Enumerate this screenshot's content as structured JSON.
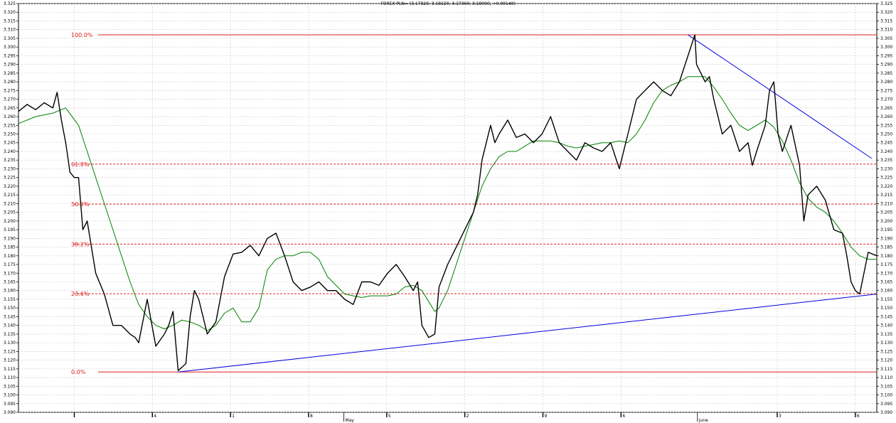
{
  "chart_data": {
    "type": "line",
    "title": "FOREX PLN= (3.17820, 3.18120, 3.17360, 3.18090, +0.00140)",
    "ylim": [
      3.09,
      3.325
    ],
    "y_ticks": [
      3.09,
      3.095,
      3.1,
      3.105,
      3.11,
      3.115,
      3.12,
      3.125,
      3.13,
      3.135,
      3.14,
      3.145,
      3.15,
      3.155,
      3.16,
      3.165,
      3.17,
      3.175,
      3.18,
      3.185,
      3.19,
      3.195,
      3.2,
      3.205,
      3.21,
      3.215,
      3.22,
      3.225,
      3.23,
      3.235,
      3.24,
      3.245,
      3.25,
      3.255,
      3.26,
      3.265,
      3.27,
      3.275,
      3.28,
      3.285,
      3.29,
      3.295,
      3.3,
      3.305,
      3.31,
      3.315,
      3.32,
      3.325
    ],
    "x_range": [
      0,
      100
    ],
    "x_ticks": [
      {
        "x": 6.5,
        "label": ""
      },
      {
        "x": 15.6,
        "label": "4"
      },
      {
        "x": 24.7,
        "label": "1"
      },
      {
        "x": 33.8,
        "label": "8"
      },
      {
        "x": 42.9,
        "label": "5"
      },
      {
        "x": 52.0,
        "label": "2"
      },
      {
        "x": 61.1,
        "label": "9"
      },
      {
        "x": 70.2,
        "label": "6"
      },
      {
        "x": 88.4,
        "label": "3"
      },
      {
        "x": 97.5,
        "label": "6"
      }
    ],
    "month_labels": [
      {
        "x": 37.9,
        "label": "May"
      },
      {
        "x": 79.1,
        "label": "June"
      }
    ],
    "grid": true,
    "fib_levels": [
      {
        "label": "100.0%",
        "value": 3.307,
        "color": "#e02020",
        "style": "solid"
      },
      {
        "label": "61.8%",
        "value": 3.2327,
        "color": "#e02020",
        "style": "dashed"
      },
      {
        "label": "50.0%",
        "value": 3.2097,
        "color": "#e02020",
        "style": "dashed"
      },
      {
        "label": "38.2%",
        "value": 3.1867,
        "color": "#e02020",
        "style": "dashed"
      },
      {
        "label": "23.6%",
        "value": 3.1582,
        "color": "#e02020",
        "style": "dashed"
      },
      {
        "label": "0.0%",
        "value": 3.1132,
        "color": "#e02020",
        "style": "solid"
      }
    ],
    "trendlines": [
      {
        "x": [
          18.6,
          100.0
        ],
        "y": [
          3.1132,
          3.158
        ],
        "color": "#0000e0"
      },
      {
        "x": [
          78.0,
          99.4
        ],
        "y": [
          3.307,
          3.236
        ],
        "color": "#0000e0"
      }
    ],
    "series": [
      {
        "color": "#000000",
        "x": [
          0.0,
          1.0,
          2.0,
          3.0,
          4.0,
          4.5,
          5.0,
          5.5,
          6.0,
          6.5,
          7.0,
          7.5,
          8.0,
          9.0,
          10.0,
          11.0,
          12.0,
          13.0,
          13.6,
          14.0,
          15.0,
          16.0,
          17.0,
          17.5,
          18.0,
          18.6,
          19.5,
          20.0,
          20.5,
          21.0,
          22.0,
          23.0,
          24.0,
          25.0,
          26.0,
          27.0,
          28.0,
          29.0,
          30.0,
          31.0,
          32.0,
          33.0,
          34.0,
          35.0,
          36.0,
          37.0,
          38.0,
          39.0,
          40.0,
          41.0,
          42.0,
          43.0,
          44.0,
          45.0,
          46.0,
          46.5,
          47.0,
          47.8,
          48.5,
          49.0,
          50.0,
          51.0,
          52.0,
          53.0,
          53.5,
          54.0,
          55.0,
          55.5,
          56.0,
          57.0,
          58.0,
          59.0,
          60.0,
          61.0,
          62.0,
          63.0,
          64.0,
          65.0,
          66.0,
          67.0,
          68.0,
          69.0,
          70.0,
          71.0,
          72.0,
          73.0,
          74.0,
          75.0,
          76.0,
          77.0,
          78.0,
          78.8,
          79.0,
          79.5,
          80.0,
          80.5,
          81.0,
          82.0,
          83.0,
          84.0,
          85.0,
          85.5,
          86.0,
          87.0,
          87.5,
          88.0,
          88.5,
          89.0,
          90.0,
          91.0,
          91.5,
          92.0,
          93.0,
          94.0,
          95.0,
          96.0,
          96.5,
          97.0,
          97.5,
          98.0,
          98.5,
          99.0,
          100.0
        ],
        "y": [
          3.263,
          3.267,
          3.264,
          3.268,
          3.265,
          3.274,
          3.258,
          3.245,
          3.228,
          3.225,
          3.225,
          3.195,
          3.2,
          3.17,
          3.158,
          3.14,
          3.14,
          3.135,
          3.133,
          3.13,
          3.155,
          3.128,
          3.135,
          3.14,
          3.148,
          3.114,
          3.118,
          3.145,
          3.16,
          3.155,
          3.135,
          3.142,
          3.168,
          3.181,
          3.182,
          3.186,
          3.18,
          3.19,
          3.193,
          3.18,
          3.165,
          3.16,
          3.162,
          3.165,
          3.16,
          3.16,
          3.155,
          3.152,
          3.165,
          3.165,
          3.163,
          3.17,
          3.175,
          3.168,
          3.16,
          3.165,
          3.14,
          3.133,
          3.135,
          3.162,
          3.175,
          3.185,
          3.195,
          3.205,
          3.215,
          3.235,
          3.255,
          3.245,
          3.25,
          3.258,
          3.248,
          3.25,
          3.245,
          3.25,
          3.26,
          3.245,
          3.24,
          3.235,
          3.245,
          3.242,
          3.24,
          3.245,
          3.23,
          3.25,
          3.27,
          3.275,
          3.28,
          3.275,
          3.272,
          3.28,
          3.295,
          3.307,
          3.29,
          3.285,
          3.28,
          3.283,
          3.27,
          3.25,
          3.255,
          3.24,
          3.245,
          3.232,
          3.24,
          3.255,
          3.275,
          3.28,
          3.25,
          3.24,
          3.255,
          3.232,
          3.2,
          3.215,
          3.22,
          3.212,
          3.195,
          3.193,
          3.18,
          3.165,
          3.16,
          3.158,
          3.17,
          3.182,
          3.18
        ]
      },
      {
        "color": "#008000",
        "x": [
          0.0,
          2.0,
          4.0,
          5.5,
          7.0,
          8.0,
          9.0,
          10.0,
          11.0,
          12.0,
          13.0,
          14.0,
          15.0,
          16.0,
          17.0,
          18.0,
          19.0,
          20.0,
          21.0,
          22.0,
          23.0,
          24.0,
          25.0,
          26.0,
          27.0,
          28.0,
          29.0,
          30.0,
          31.0,
          32.0,
          33.0,
          34.0,
          35.0,
          36.0,
          37.0,
          38.0,
          39.0,
          40.0,
          41.0,
          42.0,
          43.0,
          44.0,
          45.0,
          46.0,
          47.0,
          48.0,
          48.5,
          49.0,
          50.0,
          51.0,
          52.0,
          53.0,
          54.0,
          55.0,
          56.0,
          57.0,
          58.0,
          59.0,
          60.0,
          61.0,
          62.0,
          63.0,
          64.0,
          65.0,
          66.0,
          67.0,
          68.0,
          69.0,
          70.0,
          71.0,
          72.0,
          73.0,
          74.0,
          75.0,
          76.0,
          77.0,
          78.0,
          79.0,
          80.0,
          81.0,
          82.0,
          83.0,
          84.0,
          85.0,
          86.0,
          87.0,
          88.0,
          89.0,
          90.0,
          91.0,
          92.0,
          93.0,
          94.0,
          95.0,
          96.0,
          97.0,
          98.0,
          99.0,
          100.0
        ],
        "y": [
          3.256,
          3.26,
          3.262,
          3.265,
          3.255,
          3.24,
          3.225,
          3.21,
          3.195,
          3.18,
          3.165,
          3.152,
          3.145,
          3.14,
          3.138,
          3.14,
          3.143,
          3.142,
          3.14,
          3.137,
          3.14,
          3.147,
          3.15,
          3.142,
          3.142,
          3.15,
          3.172,
          3.178,
          3.18,
          3.18,
          3.182,
          3.182,
          3.178,
          3.168,
          3.163,
          3.158,
          3.157,
          3.156,
          3.157,
          3.157,
          3.157,
          3.158,
          3.162,
          3.163,
          3.16,
          3.152,
          3.148,
          3.15,
          3.16,
          3.175,
          3.19,
          3.205,
          3.22,
          3.23,
          3.237,
          3.24,
          3.24,
          3.243,
          3.246,
          3.246,
          3.246,
          3.245,
          3.243,
          3.242,
          3.243,
          3.244,
          3.245,
          3.245,
          3.246,
          3.245,
          3.25,
          3.258,
          3.268,
          3.275,
          3.278,
          3.28,
          3.283,
          3.283,
          3.283,
          3.277,
          3.27,
          3.262,
          3.255,
          3.252,
          3.255,
          3.258,
          3.254,
          3.246,
          3.235,
          3.222,
          3.213,
          3.208,
          3.205,
          3.2,
          3.193,
          3.185,
          3.18,
          3.178,
          3.178
        ]
      }
    ]
  }
}
